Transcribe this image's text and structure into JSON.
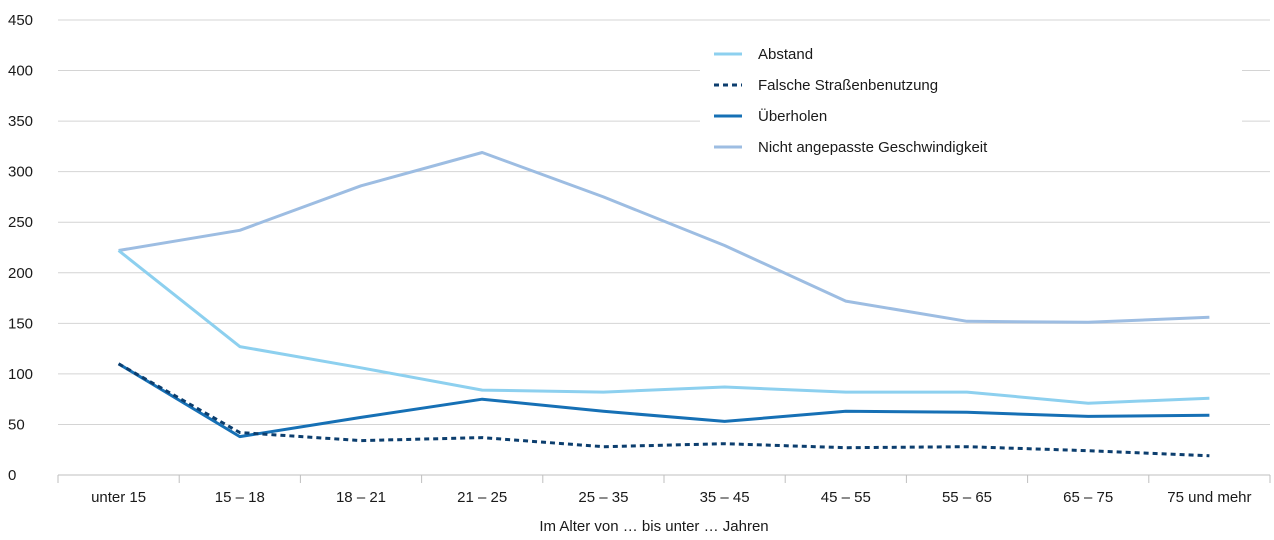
{
  "chart_data": {
    "type": "line",
    "xlabel": "Im Alter von … bis unter … Jahren",
    "ylabel": "",
    "ylim": [
      0,
      450
    ],
    "yticks": [
      "0",
      "50",
      "100",
      "150",
      "200",
      "250",
      "300",
      "350",
      "400",
      "450"
    ],
    "categories": [
      "unter 15",
      "15 – 18",
      "18 – 21",
      "21 – 25",
      "25 – 35",
      "35 – 45",
      "45 – 55",
      "55 – 65",
      "65 – 75",
      "75 und mehr"
    ],
    "grid": true,
    "legend_position": "top-right",
    "series": [
      {
        "name": "Abstand",
        "color": "#8dd0ef",
        "style": "solid",
        "values": [
          222,
          127,
          106,
          84,
          82,
          87,
          82,
          82,
          71,
          76
        ]
      },
      {
        "name": "Falsche Straßenbenutzung",
        "color": "#0c3e6e",
        "style": "dotted",
        "values": [
          110,
          42,
          34,
          37,
          28,
          31,
          27,
          28,
          24,
          19
        ]
      },
      {
        "name": "Überholen",
        "color": "#1670b5",
        "style": "solid",
        "values": [
          110,
          38,
          57,
          75,
          63,
          53,
          63,
          62,
          58,
          59
        ]
      },
      {
        "name": "Nicht angepasste Geschwindigkeit",
        "color": "#9dbde2",
        "style": "solid",
        "values": [
          222,
          242,
          286,
          319,
          275,
          227,
          172,
          152,
          151,
          156
        ]
      }
    ]
  }
}
